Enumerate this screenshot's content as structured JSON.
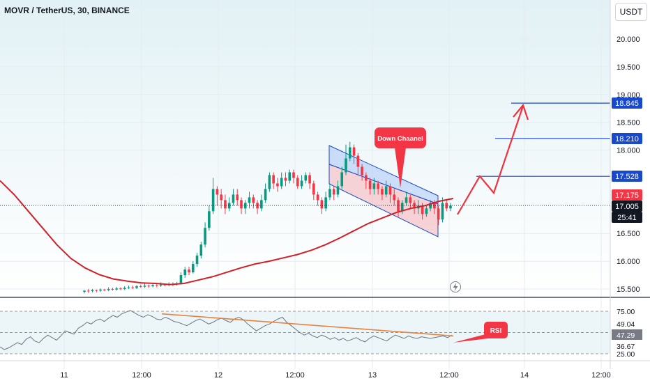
{
  "header": {
    "title": "MOVR / TetherUS, 30, BINANCE",
    "currency_button": "USDT"
  },
  "colors": {
    "up": "#089981",
    "down": "#f23645",
    "ma": "#d02028",
    "blue": "#1848cc",
    "rsi": "#6b7480",
    "rsi_trend": "#e8823e",
    "channel_up": "#a9c7f5",
    "channel_dn": "#f5b7bd",
    "background_top": "#e2f1f5",
    "background_bottom": "#ffffff"
  },
  "annotations": {
    "channel_label": "Down Chaanel",
    "rsi_label": "RSI",
    "lightning_icon": "lightning-icon"
  },
  "chart_data": [
    {
      "type": "candlestick",
      "title": "MOVR / TetherUS, 30, BINANCE",
      "ylim": [
        15.4,
        20.5
      ],
      "y_ticks": [
        "20.000",
        "19.500",
        "19.000",
        "18.500",
        "18.000",
        "16.500",
        "16.000",
        "15.500"
      ],
      "x_ticks": [
        "11",
        "12:00",
        "12",
        "12:00",
        "13",
        "12:00",
        "14",
        "12:00"
      ],
      "price_labels": [
        {
          "value": "18.845",
          "kind": "blue"
        },
        {
          "value": "18.210",
          "kind": "blue"
        },
        {
          "value": "17.528",
          "kind": "blue"
        },
        {
          "value": "17.175",
          "kind": "red"
        },
        {
          "value": "17.005",
          "kind": "dark"
        },
        {
          "value": "25:41",
          "kind": "dark"
        }
      ],
      "levels": [
        18.845,
        18.21,
        17.528
      ],
      "current_price": 17.005,
      "ma_line": [
        17.45,
        17.2,
        16.9,
        16.6,
        16.3,
        16.05,
        15.88,
        15.76,
        15.68,
        15.64,
        15.61,
        15.6,
        15.58,
        15.6,
        15.66,
        15.72,
        15.8,
        15.88,
        15.95,
        16.0,
        16.06,
        16.12,
        16.2,
        16.3,
        16.42,
        16.55,
        16.68,
        16.78,
        16.88,
        16.95,
        17.0,
        17.08,
        17.13
      ],
      "candles": [
        [
          15.45,
          15.47,
          15.42,
          15.48
        ],
        [
          15.47,
          15.46,
          15.43,
          15.5
        ],
        [
          15.46,
          15.48,
          15.44,
          15.5
        ],
        [
          15.48,
          15.47,
          15.44,
          15.49
        ],
        [
          15.47,
          15.49,
          15.45,
          15.51
        ],
        [
          15.49,
          15.48,
          15.46,
          15.5
        ],
        [
          15.48,
          15.5,
          15.46,
          15.53
        ],
        [
          15.5,
          15.49,
          15.47,
          15.52
        ],
        [
          15.49,
          15.51,
          15.47,
          15.54
        ],
        [
          15.51,
          15.5,
          15.48,
          15.53
        ],
        [
          15.5,
          15.52,
          15.48,
          15.55
        ],
        [
          15.52,
          15.53,
          15.5,
          15.56
        ],
        [
          15.53,
          15.52,
          15.5,
          15.56
        ],
        [
          15.52,
          15.55,
          15.5,
          15.57
        ],
        [
          15.55,
          15.54,
          15.52,
          15.58
        ],
        [
          15.54,
          15.56,
          15.52,
          15.6
        ],
        [
          15.56,
          15.55,
          15.52,
          15.58
        ],
        [
          15.55,
          15.57,
          15.53,
          15.6
        ],
        [
          15.57,
          15.56,
          15.53,
          15.6
        ],
        [
          15.56,
          15.58,
          15.54,
          15.62
        ],
        [
          15.58,
          15.57,
          15.55,
          15.6
        ],
        [
          15.57,
          15.59,
          15.55,
          15.62
        ],
        [
          15.59,
          15.58,
          15.55,
          15.62
        ],
        [
          15.58,
          15.6,
          15.56,
          15.63
        ],
        [
          15.6,
          15.75,
          15.58,
          15.8
        ],
        [
          15.75,
          15.85,
          15.7,
          15.9
        ],
        [
          15.85,
          15.8,
          15.75,
          15.9
        ],
        [
          15.8,
          15.95,
          15.78,
          16.0
        ],
        [
          15.95,
          16.1,
          15.9,
          16.15
        ],
        [
          16.1,
          16.3,
          16.05,
          16.35
        ],
        [
          16.3,
          16.6,
          16.25,
          16.7
        ],
        [
          16.6,
          16.9,
          16.55,
          17.0
        ],
        [
          16.9,
          17.3,
          16.85,
          17.5
        ],
        [
          17.3,
          17.2,
          17.0,
          17.35
        ],
        [
          17.2,
          17.1,
          16.95,
          17.3
        ],
        [
          17.1,
          16.95,
          16.85,
          17.2
        ],
        [
          16.95,
          17.05,
          16.9,
          17.15
        ],
        [
          17.05,
          17.2,
          17.0,
          17.3
        ],
        [
          17.2,
          17.1,
          17.0,
          17.3
        ],
        [
          17.1,
          16.95,
          16.85,
          17.15
        ],
        [
          16.95,
          17.05,
          16.85,
          17.1
        ],
        [
          17.05,
          17.15,
          16.95,
          17.25
        ],
        [
          17.15,
          17.05,
          16.95,
          17.2
        ],
        [
          17.05,
          16.95,
          16.85,
          17.1
        ],
        [
          16.95,
          17.1,
          16.9,
          17.2
        ],
        [
          17.1,
          17.3,
          17.05,
          17.4
        ],
        [
          17.3,
          17.55,
          17.25,
          17.6
        ],
        [
          17.55,
          17.4,
          17.3,
          17.6
        ],
        [
          17.4,
          17.35,
          17.25,
          17.5
        ],
        [
          17.35,
          17.5,
          17.3,
          17.6
        ],
        [
          17.5,
          17.45,
          17.35,
          17.6
        ],
        [
          17.45,
          17.6,
          17.4,
          17.65
        ],
        [
          17.6,
          17.5,
          17.4,
          17.65
        ],
        [
          17.5,
          17.35,
          17.3,
          17.55
        ],
        [
          17.35,
          17.45,
          17.3,
          17.55
        ],
        [
          17.45,
          17.55,
          17.4,
          17.6
        ],
        [
          17.55,
          17.4,
          17.3,
          17.6
        ],
        [
          17.4,
          17.2,
          17.1,
          17.45
        ],
        [
          17.2,
          17.1,
          17.0,
          17.25
        ],
        [
          17.1,
          16.95,
          16.85,
          17.15
        ],
        [
          16.95,
          17.15,
          16.9,
          17.25
        ],
        [
          17.15,
          17.3,
          17.1,
          17.4
        ],
        [
          17.3,
          17.2,
          17.1,
          17.35
        ],
        [
          17.2,
          17.35,
          17.15,
          17.45
        ],
        [
          17.35,
          17.6,
          17.3,
          17.7
        ],
        [
          17.6,
          17.85,
          17.55,
          18.1
        ],
        [
          17.85,
          18.05,
          17.8,
          18.15
        ],
        [
          18.05,
          17.9,
          17.75,
          18.1
        ],
        [
          17.9,
          17.7,
          17.55,
          17.95
        ],
        [
          17.7,
          17.55,
          17.45,
          17.75
        ],
        [
          17.55,
          17.45,
          17.3,
          17.6
        ],
        [
          17.45,
          17.3,
          17.2,
          17.5
        ],
        [
          17.3,
          17.4,
          17.2,
          17.5
        ],
        [
          17.4,
          17.3,
          17.2,
          17.45
        ],
        [
          17.3,
          17.2,
          17.1,
          17.35
        ],
        [
          17.2,
          17.35,
          17.15,
          17.45
        ],
        [
          17.35,
          17.2,
          17.05,
          17.4
        ],
        [
          17.2,
          17.1,
          17.0,
          17.3
        ],
        [
          17.1,
          16.9,
          16.8,
          17.15
        ],
        [
          16.9,
          17.05,
          16.85,
          17.1
        ],
        [
          17.05,
          17.15,
          17.0,
          17.25
        ],
        [
          17.15,
          17.05,
          16.95,
          17.2
        ],
        [
          17.05,
          16.95,
          16.85,
          17.1
        ],
        [
          16.95,
          17.0,
          16.85,
          17.1
        ],
        [
          17.0,
          16.85,
          16.75,
          17.05
        ],
        [
          16.85,
          16.95,
          16.8,
          17.0
        ],
        [
          16.95,
          17.05,
          16.9,
          17.1
        ],
        [
          17.05,
          16.95,
          16.85,
          17.1
        ],
        [
          16.95,
          16.75,
          16.65,
          17.0
        ],
        [
          16.75,
          17.05,
          16.7,
          17.15
        ],
        [
          17.05,
          16.95,
          16.9,
          17.1
        ],
        [
          16.95,
          17.0,
          16.9,
          17.05
        ]
      ]
    },
    {
      "type": "line",
      "title": "RSI",
      "ylim": [
        24,
        77
      ],
      "y_ticks": [
        "75.00",
        "25.00"
      ],
      "bands": [
        75,
        50,
        25
      ],
      "value_labels": [
        {
          "value": "49.04",
          "kind": "plain"
        },
        {
          "value": "47.29",
          "kind": "gray"
        },
        {
          "value": "36.67",
          "kind": "plain"
        }
      ],
      "series": [
        {
          "values": [
            33,
            30,
            32,
            35,
            38,
            36,
            42,
            45,
            40,
            38,
            43,
            47,
            44,
            41,
            46,
            52,
            50,
            48,
            55,
            58,
            62,
            60,
            64,
            66,
            63,
            67,
            70,
            68,
            72,
            74,
            76,
            73,
            70,
            68,
            71,
            69,
            66,
            65,
            68,
            66,
            63,
            62,
            60,
            58,
            61,
            64,
            66,
            63,
            60,
            62,
            65,
            67,
            64,
            62,
            66,
            68,
            65,
            60,
            56,
            52,
            55,
            58,
            60,
            63,
            66,
            68,
            62,
            58,
            54,
            50,
            47,
            49,
            46,
            44,
            47,
            45,
            42,
            44,
            41,
            43,
            40,
            42,
            44,
            41,
            39,
            43,
            46,
            44,
            42,
            40,
            44,
            47,
            45,
            43,
            46,
            44,
            43,
            45,
            44,
            43,
            44,
            45,
            46,
            44,
            47
          ]
        }
      ],
      "trend_line": [
        72,
        46
      ]
    }
  ]
}
